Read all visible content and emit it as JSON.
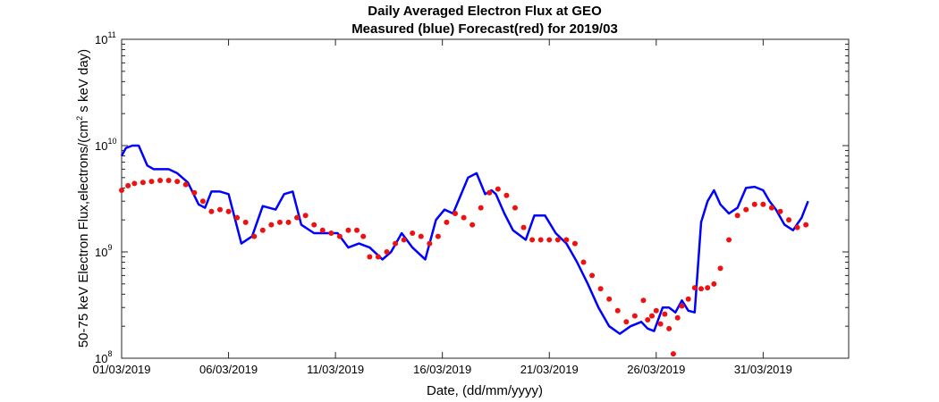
{
  "chart_data": {
    "type": "line",
    "title_line1": "Daily Averaged Electron Flux at GEO",
    "title_line2": "Measured (blue) Forecast(red) for 2019/03",
    "xlabel": "Date, (dd/mm/yyyy)",
    "ylabel_main": "50-75 keV Electron Flux,electrons/(cm",
    "ylabel_sup": "2",
    "ylabel_tail": " s keV day)",
    "y_scale": "log",
    "ylim": [
      100000000.0,
      100000000000.0
    ],
    "xlim": [
      "01/03/2019",
      "04/04/2019"
    ],
    "x_ticks": [
      "01/03/2019",
      "06/03/2019",
      "11/03/2019",
      "16/03/2019",
      "21/03/2019",
      "26/03/2019",
      "31/03/2019"
    ],
    "y_ticks": [
      {
        "base": "10",
        "exp": "8"
      },
      {
        "base": "10",
        "exp": "9"
      },
      {
        "base": "10",
        "exp": "10"
      },
      {
        "base": "10",
        "exp": "11"
      }
    ],
    "series": [
      {
        "name": "Measured",
        "color": "#0000ff",
        "style": "line",
        "x": [
          0,
          0.2,
          0.5,
          0.8,
          1.2,
          1.5,
          1.7,
          2.2,
          2.6,
          3.1,
          3.6,
          3.9,
          4.2,
          4.6,
          5.0,
          5.6,
          6.1,
          6.6,
          7.2,
          7.6,
          8.0,
          8.4,
          9.0,
          9.6,
          10.1,
          10.6,
          11.1,
          11.6,
          12.2,
          12.6,
          13.1,
          13.6,
          14.2,
          14.7,
          15.1,
          15.5,
          15.8,
          16.2,
          16.6,
          17.0,
          17.3,
          17.5,
          17.9,
          18.3,
          18.9,
          19.3,
          19.8,
          20.3,
          20.8,
          21.3,
          21.8,
          22.3,
          22.8,
          23.3,
          23.8,
          24.3,
          24.6,
          24.9,
          25.3,
          25.6,
          25.9,
          26.2,
          26.5,
          26.8,
          27.1,
          27.4,
          27.7,
          28.0,
          28.4,
          28.8,
          29.2,
          29.6,
          30.0,
          30.3,
          30.6,
          31.0,
          31.4,
          31.8,
          32.1
        ],
        "y": [
          8000000000.0,
          9500000000.0,
          10000000000.0,
          10000000000.0,
          6500000000.0,
          6000000000.0,
          6000000000.0,
          6000000000.0,
          5500000000.0,
          4500000000.0,
          2800000000.0,
          2600000000.0,
          3700000000.0,
          3700000000.0,
          3500000000.0,
          1200000000.0,
          1400000000.0,
          2700000000.0,
          2500000000.0,
          3500000000.0,
          3700000000.0,
          1800000000.0,
          1500000000.0,
          1500000000.0,
          1500000000.0,
          1100000000.0,
          1200000000.0,
          1100000000.0,
          850000000.0,
          1000000000.0,
          1500000000.0,
          1100000000.0,
          850000000.0,
          2000000000.0,
          2500000000.0,
          2300000000.0,
          3200000000.0,
          5000000000.0,
          5500000000.0,
          3500000000.0,
          3800000000.0,
          3500000000.0,
          2300000000.0,
          1600000000.0,
          1300000000.0,
          2200000000.0,
          2200000000.0,
          1500000000.0,
          1200000000.0,
          800000000.0,
          500000000.0,
          300000000.0,
          200000000.0,
          170000000.0,
          200000000.0,
          220000000.0,
          190000000.0,
          180000000.0,
          300000000.0,
          300000000.0,
          270000000.0,
          350000000.0,
          280000000.0,
          270000000.0,
          1900000000.0,
          3000000000.0,
          3800000000.0,
          2800000000.0,
          2300000000.0,
          2600000000.0,
          4000000000.0,
          4100000000.0,
          3800000000.0,
          3000000000.0,
          2500000000.0,
          1800000000.0,
          1600000000.0,
          2100000000.0,
          3000000000.0
        ]
      },
      {
        "name": "Forecast",
        "color": "#ee1111",
        "style": "dots",
        "x": [
          0,
          0.3,
          0.6,
          1.0,
          1.4,
          1.8,
          2.2,
          2.6,
          3.0,
          3.4,
          3.8,
          4.2,
          4.6,
          5.0,
          5.4,
          5.8,
          6.2,
          6.6,
          7.0,
          7.4,
          7.8,
          8.2,
          8.6,
          9.0,
          9.4,
          9.8,
          10.2,
          10.6,
          11.0,
          11.3,
          11.6,
          12.0,
          12.4,
          12.8,
          13.2,
          13.6,
          14.0,
          14.4,
          14.8,
          15.2,
          15.6,
          16.0,
          16.4,
          16.8,
          17.2,
          17.6,
          18.0,
          18.4,
          18.8,
          19.2,
          19.6,
          20.0,
          20.4,
          20.8,
          21.2,
          21.6,
          22.0,
          22.4,
          22.8,
          23.2,
          23.6,
          24.0,
          24.4,
          24.6,
          24.8,
          25.0,
          25.2,
          25.4,
          25.6,
          25.8,
          26.0,
          26.2,
          26.5,
          26.8,
          27.1,
          27.4,
          27.7,
          28.0,
          28.4,
          28.8,
          29.2,
          29.6,
          30.0,
          30.4,
          30.8,
          31.2,
          31.6,
          32.0
        ],
        "y": [
          3800000000.0,
          4200000000.0,
          4400000000.0,
          4500000000.0,
          4600000000.0,
          4700000000.0,
          4700000000.0,
          4600000000.0,
          4300000000.0,
          3600000000.0,
          3000000000.0,
          2400000000.0,
          2500000000.0,
          2400000000.0,
          2100000000.0,
          1900000000.0,
          1400000000.0,
          1600000000.0,
          1800000000.0,
          1900000000.0,
          1900000000.0,
          2100000000.0,
          2200000000.0,
          1800000000.0,
          1600000000.0,
          1500000000.0,
          1400000000.0,
          1600000000.0,
          1600000000.0,
          1400000000.0,
          900000000.0,
          900000000.0,
          1000000000.0,
          1200000000.0,
          1300000000.0,
          1500000000.0,
          1400000000.0,
          1200000000.0,
          1400000000.0,
          1900000000.0,
          2300000000.0,
          2100000000.0,
          1800000000.0,
          2600000000.0,
          3600000000.0,
          3900000000.0,
          3400000000.0,
          2600000000.0,
          1700000000.0,
          1300000000.0,
          1300000000.0,
          1300000000.0,
          1300000000.0,
          1300000000.0,
          1200000000.0,
          800000000.0,
          600000000.0,
          450000000.0,
          360000000.0,
          280000000.0,
          220000000.0,
          250000000.0,
          350000000.0,
          230000000.0,
          250000000.0,
          280000000.0,
          210000000.0,
          260000000.0,
          190000000.0,
          110000000.0,
          240000000.0,
          310000000.0,
          360000000.0,
          460000000.0,
          450000000.0,
          460000000.0,
          500000000.0,
          700000000.0,
          1300000000.0,
          2200000000.0,
          2500000000.0,
          2800000000.0,
          2800000000.0,
          2600000000.0,
          2400000000.0,
          2000000000.0,
          1700000000.0,
          1800000000.0
        ]
      }
    ]
  }
}
